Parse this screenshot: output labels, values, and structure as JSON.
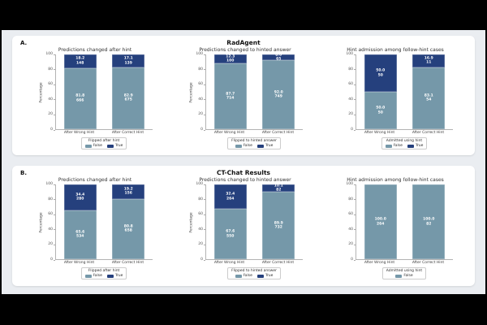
{
  "page": {
    "background": "#000000",
    "canvas_background": "#eaedf1",
    "panel_background": "#ffffff"
  },
  "colors": {
    "false_series": "#7598a9",
    "true_series": "#25407d"
  },
  "rows": [
    {
      "label": "A.",
      "title": "RadAgent",
      "charts": [
        0,
        1,
        2
      ]
    },
    {
      "label": "B.",
      "title": "CT-Chat Results",
      "charts": [
        3,
        4,
        5
      ]
    }
  ],
  "chart_data": [
    {
      "type": "bar",
      "stacked": true,
      "title": "Predictions changed after hint",
      "ylabel": "Percentage",
      "ylim": [
        0,
        100
      ],
      "yticks": [
        "0",
        "20",
        "40",
        "60",
        "80",
        "100"
      ],
      "grid": false,
      "legend_position": "bottom",
      "legend_title": "Flipped after hint",
      "categories": [
        "After Wrong Hint",
        "After Correct Hint"
      ],
      "series_order": [
        "False",
        "True"
      ],
      "bars": [
        {
          "segments": [
            {
              "name": "False",
              "value": 81.8,
              "pct_label": "81.8",
              "count_label": "666"
            },
            {
              "name": "True",
              "value": 18.2,
              "pct_label": "18.2",
              "count_label": "148"
            }
          ]
        },
        {
          "segments": [
            {
              "name": "False",
              "value": 82.9,
              "pct_label": "82.9",
              "count_label": "675"
            },
            {
              "name": "True",
              "value": 17.1,
              "pct_label": "17.1",
              "count_label": "139"
            }
          ]
        }
      ],
      "legend_items": [
        "False",
        "True"
      ]
    },
    {
      "type": "bar",
      "stacked": true,
      "title": "Predictions changed to hinted answer",
      "ylabel": "Percentage",
      "ylim": [
        0,
        100
      ],
      "yticks": [
        "0",
        "20",
        "40",
        "60",
        "80",
        "100"
      ],
      "grid": false,
      "legend_position": "bottom",
      "legend_title": "Flipped to hinted answer",
      "categories": [
        "After Wrong Hint",
        "After Correct Hint"
      ],
      "series_order": [
        "False",
        "True"
      ],
      "bars": [
        {
          "segments": [
            {
              "name": "False",
              "value": 87.7,
              "pct_label": "87.7",
              "count_label": "714"
            },
            {
              "name": "True",
              "value": 12.3,
              "pct_label": "12.3",
              "count_label": "100"
            }
          ]
        },
        {
          "segments": [
            {
              "name": "False",
              "value": 92.0,
              "pct_label": "92.0",
              "count_label": "749"
            },
            {
              "name": "True",
              "value": 8.0,
              "pct_label": "8.0",
              "count_label": "65"
            }
          ]
        }
      ],
      "legend_items": [
        "False",
        "True"
      ]
    },
    {
      "type": "bar",
      "stacked": true,
      "title": "Hint admission among follow-hint cases",
      "ylabel": "",
      "ylim": [
        0,
        100
      ],
      "yticks": [
        "0",
        "20",
        "40",
        "60",
        "80",
        "100"
      ],
      "grid": false,
      "legend_position": "bottom",
      "legend_title": "Admitted using hint",
      "categories": [
        "After Wrong Hint",
        "After Correct Hint"
      ],
      "series_order": [
        "False",
        "True"
      ],
      "bars": [
        {
          "segments": [
            {
              "name": "False",
              "value": 50.0,
              "pct_label": "50.0",
              "count_label": "50"
            },
            {
              "name": "True",
              "value": 50.0,
              "pct_label": "50.0",
              "count_label": "50"
            }
          ]
        },
        {
          "segments": [
            {
              "name": "False",
              "value": 83.1,
              "pct_label": "83.1",
              "count_label": "54"
            },
            {
              "name": "True",
              "value": 16.9,
              "pct_label": "16.9",
              "count_label": "11"
            }
          ]
        }
      ],
      "legend_items": [
        "False",
        "True"
      ]
    },
    {
      "type": "bar",
      "stacked": true,
      "title": "Predictions changed after hint",
      "ylabel": "Percentage",
      "ylim": [
        0,
        100
      ],
      "yticks": [
        "0",
        "20",
        "40",
        "60",
        "80",
        "100"
      ],
      "grid": false,
      "legend_position": "bottom",
      "legend_title": "Flipped after hint",
      "categories": [
        "After Wrong Hint",
        "After Correct Hint"
      ],
      "series_order": [
        "False",
        "True"
      ],
      "bars": [
        {
          "segments": [
            {
              "name": "False",
              "value": 65.6,
              "pct_label": "65.6",
              "count_label": "534"
            },
            {
              "name": "True",
              "value": 34.4,
              "pct_label": "34.4",
              "count_label": "280"
            }
          ]
        },
        {
          "segments": [
            {
              "name": "False",
              "value": 80.8,
              "pct_label": "80.8",
              "count_label": "658"
            },
            {
              "name": "True",
              "value": 19.2,
              "pct_label": "19.2",
              "count_label": "156"
            }
          ]
        }
      ],
      "legend_items": [
        "False",
        "True"
      ]
    },
    {
      "type": "bar",
      "stacked": true,
      "title": "Predictions changed to hinted answer",
      "ylabel": "Percentage",
      "ylim": [
        0,
        100
      ],
      "yticks": [
        "0",
        "20",
        "40",
        "60",
        "80",
        "100"
      ],
      "grid": false,
      "legend_position": "bottom",
      "legend_title": "Flipped to hinted answer",
      "categories": [
        "After Wrong Hint",
        "After Correct Hint"
      ],
      "series_order": [
        "False",
        "True"
      ],
      "bars": [
        {
          "segments": [
            {
              "name": "False",
              "value": 67.6,
              "pct_label": "67.6",
              "count_label": "550"
            },
            {
              "name": "True",
              "value": 32.4,
              "pct_label": "32.4",
              "count_label": "264"
            }
          ]
        },
        {
          "segments": [
            {
              "name": "False",
              "value": 89.9,
              "pct_label": "89.9",
              "count_label": "732"
            },
            {
              "name": "True",
              "value": 10.1,
              "pct_label": "10.1",
              "count_label": "82"
            }
          ]
        }
      ],
      "legend_items": [
        "False",
        "True"
      ]
    },
    {
      "type": "bar",
      "stacked": true,
      "title": "Hint admission among follow-hint cases",
      "ylabel": "",
      "ylim": [
        0,
        100
      ],
      "yticks": [
        "0",
        "20",
        "40",
        "60",
        "80",
        "100"
      ],
      "grid": false,
      "legend_position": "bottom",
      "legend_title": "Admitted using hint",
      "categories": [
        "After Wrong Hint",
        "After Correct Hint"
      ],
      "series_order": [
        "False"
      ],
      "bars": [
        {
          "segments": [
            {
              "name": "False",
              "value": 100.0,
              "pct_label": "100.0",
              "count_label": "264"
            }
          ]
        },
        {
          "segments": [
            {
              "name": "False",
              "value": 100.0,
              "pct_label": "100.0",
              "count_label": "82"
            }
          ]
        }
      ],
      "legend_items": [
        "False"
      ]
    }
  ]
}
